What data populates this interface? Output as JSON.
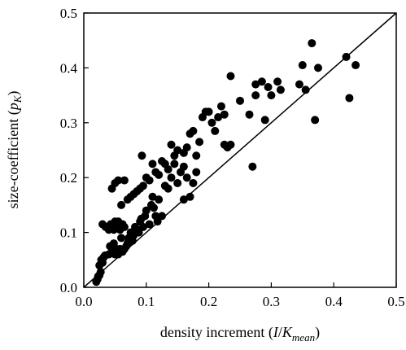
{
  "chart_data": {
    "type": "scatter",
    "xlabel": {
      "prefix": "density increment (",
      "var": "I",
      "slash": "/",
      "var2": "K",
      "sub": "mean",
      "suffix": ")"
    },
    "ylabel": {
      "prefix": "size-coefficient (",
      "var": "p",
      "sub": "K",
      "suffix": ")"
    },
    "xlim": [
      0.0,
      0.5
    ],
    "ylim": [
      0.0,
      0.5
    ],
    "xticks": [
      "0.0",
      "0.1",
      "0.2",
      "0.3",
      "0.4",
      "0.5"
    ],
    "yticks": [
      "0.0",
      "0.1",
      "0.2",
      "0.3",
      "0.4",
      "0.5"
    ],
    "grid": false,
    "legend": "none",
    "reference_line": {
      "type": "identity",
      "from": [
        0.0,
        0.0
      ],
      "to": [
        0.5,
        0.5
      ]
    },
    "marker_color": "#000000",
    "points": [
      [
        0.02,
        0.01
      ],
      [
        0.022,
        0.015
      ],
      [
        0.023,
        0.02
      ],
      [
        0.025,
        0.022
      ],
      [
        0.027,
        0.028
      ],
      [
        0.025,
        0.04
      ],
      [
        0.028,
        0.05
      ],
      [
        0.03,
        0.045
      ],
      [
        0.032,
        0.055
      ],
      [
        0.034,
        0.058
      ],
      [
        0.03,
        0.115
      ],
      [
        0.035,
        0.11
      ],
      [
        0.038,
        0.11
      ],
      [
        0.04,
        0.105
      ],
      [
        0.043,
        0.115
      ],
      [
        0.045,
        0.11
      ],
      [
        0.048,
        0.105
      ],
      [
        0.05,
        0.11
      ],
      [
        0.05,
        0.12
      ],
      [
        0.053,
        0.11
      ],
      [
        0.055,
        0.12
      ],
      [
        0.058,
        0.105
      ],
      [
        0.06,
        0.11
      ],
      [
        0.062,
        0.115
      ],
      [
        0.065,
        0.11
      ],
      [
        0.04,
        0.06
      ],
      [
        0.042,
        0.075
      ],
      [
        0.045,
        0.065
      ],
      [
        0.048,
        0.08
      ],
      [
        0.05,
        0.06
      ],
      [
        0.052,
        0.07
      ],
      [
        0.055,
        0.06
      ],
      [
        0.058,
        0.07
      ],
      [
        0.06,
        0.09
      ],
      [
        0.062,
        0.065
      ],
      [
        0.065,
        0.07
      ],
      [
        0.068,
        0.075
      ],
      [
        0.07,
        0.08
      ],
      [
        0.072,
        0.09
      ],
      [
        0.075,
        0.1
      ],
      [
        0.078,
        0.085
      ],
      [
        0.08,
        0.095
      ],
      [
        0.082,
        0.11
      ],
      [
        0.085,
        0.105
      ],
      [
        0.088,
        0.1
      ],
      [
        0.09,
        0.12
      ],
      [
        0.092,
        0.125
      ],
      [
        0.095,
        0.11
      ],
      [
        0.098,
        0.13
      ],
      [
        0.1,
        0.14
      ],
      [
        0.105,
        0.115
      ],
      [
        0.108,
        0.15
      ],
      [
        0.11,
        0.165
      ],
      [
        0.112,
        0.145
      ],
      [
        0.115,
        0.13
      ],
      [
        0.118,
        0.12
      ],
      [
        0.12,
        0.16
      ],
      [
        0.125,
        0.13
      ],
      [
        0.13,
        0.185
      ],
      [
        0.135,
        0.18
      ],
      [
        0.14,
        0.2
      ],
      [
        0.145,
        0.225
      ],
      [
        0.15,
        0.19
      ],
      [
        0.155,
        0.21
      ],
      [
        0.16,
        0.22
      ],
      [
        0.16,
        0.16
      ],
      [
        0.165,
        0.2
      ],
      [
        0.17,
        0.165
      ],
      [
        0.175,
        0.19
      ],
      [
        0.18,
        0.21
      ],
      [
        0.045,
        0.18
      ],
      [
        0.05,
        0.19
      ],
      [
        0.055,
        0.195
      ],
      [
        0.065,
        0.195
      ],
      [
        0.06,
        0.15
      ],
      [
        0.07,
        0.16
      ],
      [
        0.075,
        0.165
      ],
      [
        0.08,
        0.17
      ],
      [
        0.085,
        0.175
      ],
      [
        0.09,
        0.18
      ],
      [
        0.095,
        0.185
      ],
      [
        0.093,
        0.24
      ],
      [
        0.1,
        0.2
      ],
      [
        0.105,
        0.195
      ],
      [
        0.11,
        0.225
      ],
      [
        0.115,
        0.21
      ],
      [
        0.12,
        0.205
      ],
      [
        0.125,
        0.23
      ],
      [
        0.13,
        0.225
      ],
      [
        0.135,
        0.215
      ],
      [
        0.14,
        0.26
      ],
      [
        0.145,
        0.24
      ],
      [
        0.15,
        0.25
      ],
      [
        0.16,
        0.245
      ],
      [
        0.165,
        0.255
      ],
      [
        0.17,
        0.28
      ],
      [
        0.175,
        0.285
      ],
      [
        0.18,
        0.24
      ],
      [
        0.185,
        0.265
      ],
      [
        0.19,
        0.31
      ],
      [
        0.195,
        0.32
      ],
      [
        0.2,
        0.32
      ],
      [
        0.205,
        0.3
      ],
      [
        0.21,
        0.285
      ],
      [
        0.215,
        0.31
      ],
      [
        0.22,
        0.33
      ],
      [
        0.225,
        0.315
      ],
      [
        0.225,
        0.26
      ],
      [
        0.23,
        0.255
      ],
      [
        0.235,
        0.26
      ],
      [
        0.235,
        0.385
      ],
      [
        0.25,
        0.34
      ],
      [
        0.265,
        0.315
      ],
      [
        0.275,
        0.35
      ],
      [
        0.275,
        0.37
      ],
      [
        0.285,
        0.375
      ],
      [
        0.29,
        0.305
      ],
      [
        0.295,
        0.365
      ],
      [
        0.3,
        0.35
      ],
      [
        0.31,
        0.375
      ],
      [
        0.315,
        0.36
      ],
      [
        0.345,
        0.37
      ],
      [
        0.35,
        0.405
      ],
      [
        0.355,
        0.36
      ],
      [
        0.365,
        0.445
      ],
      [
        0.37,
        0.305
      ],
      [
        0.375,
        0.4
      ],
      [
        0.27,
        0.22
      ],
      [
        0.42,
        0.42
      ],
      [
        0.425,
        0.345
      ],
      [
        0.435,
        0.405
      ]
    ]
  }
}
